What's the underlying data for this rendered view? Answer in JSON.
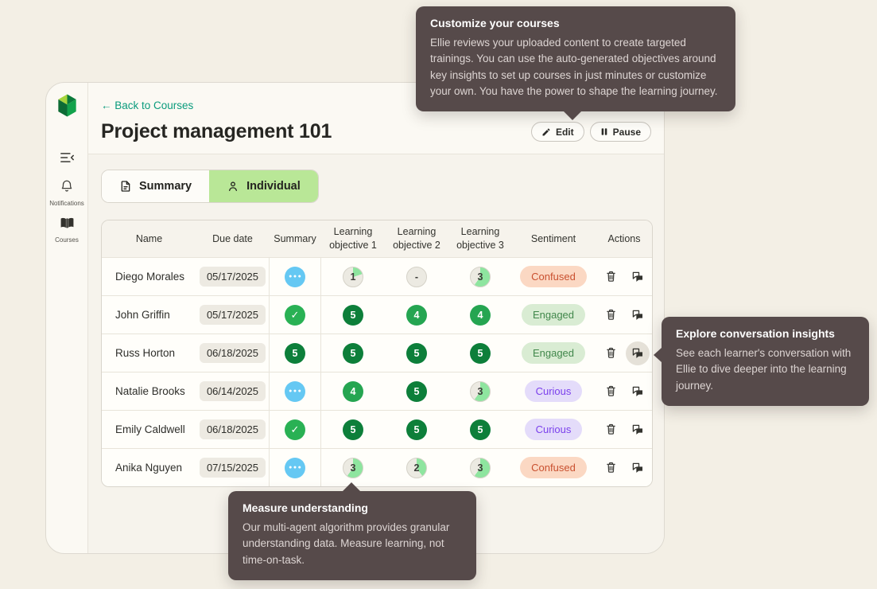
{
  "header": {
    "back_label": "← Back to Courses",
    "title": "Project management 101",
    "edit_label": "Edit",
    "pause_label": "Pause"
  },
  "sidebar": {
    "items": [
      {
        "label": "Notifications",
        "icon": "bell-icon"
      },
      {
        "label": "Courses",
        "icon": "book-icon"
      }
    ]
  },
  "tabs": [
    {
      "label": "Summary",
      "icon": "document-icon",
      "active": false
    },
    {
      "label": "Individual",
      "icon": "person-icon",
      "active": true
    }
  ],
  "table": {
    "columns": [
      "Name",
      "Due date",
      "Summary",
      "Learning objective 1",
      "Learning objective 2",
      "Learning objective 3",
      "Sentiment",
      "Actions"
    ],
    "rows": [
      {
        "name": "Diego Morales",
        "due_date": "05/17/2025",
        "summary": {
          "type": "ellipsis"
        },
        "objectives": [
          {
            "type": "pie",
            "value": "1",
            "fraction": 0.2
          },
          {
            "type": "pie",
            "value": "-",
            "fraction": 0
          },
          {
            "type": "pie",
            "value": "3",
            "fraction": 0.6
          }
        ],
        "sentiment": "Confused",
        "chat_highlighted": false
      },
      {
        "name": "John Griffin",
        "due_date": "05/17/2025",
        "summary": {
          "type": "check"
        },
        "objectives": [
          {
            "type": "solid",
            "value": "5"
          },
          {
            "type": "solid",
            "value": "4"
          },
          {
            "type": "solid",
            "value": "4"
          }
        ],
        "sentiment": "Engaged",
        "chat_highlighted": false
      },
      {
        "name": "Russ Horton",
        "due_date": "06/18/2025",
        "summary": {
          "type": "solid",
          "value": "5"
        },
        "objectives": [
          {
            "type": "solid",
            "value": "5"
          },
          {
            "type": "solid",
            "value": "5"
          },
          {
            "type": "solid",
            "value": "5"
          }
        ],
        "sentiment": "Engaged",
        "chat_highlighted": true
      },
      {
        "name": "Natalie Brooks",
        "due_date": "06/14/2025",
        "summary": {
          "type": "ellipsis"
        },
        "objectives": [
          {
            "type": "solid",
            "value": "4"
          },
          {
            "type": "solid",
            "value": "5"
          },
          {
            "type": "pie",
            "value": "3",
            "fraction": 0.6
          }
        ],
        "sentiment": "Curious",
        "chat_highlighted": false
      },
      {
        "name": "Emily Caldwell",
        "due_date": "06/18/2025",
        "summary": {
          "type": "check"
        },
        "objectives": [
          {
            "type": "solid",
            "value": "5"
          },
          {
            "type": "solid",
            "value": "5"
          },
          {
            "type": "solid",
            "value": "5"
          }
        ],
        "sentiment": "Curious",
        "chat_highlighted": false
      },
      {
        "name": "Anika Nguyen",
        "due_date": "07/15/2025",
        "summary": {
          "type": "ellipsis"
        },
        "objectives": [
          {
            "type": "pie",
            "value": "3",
            "fraction": 0.6
          },
          {
            "type": "pie",
            "value": "2",
            "fraction": 0.4
          },
          {
            "type": "pie",
            "value": "3",
            "fraction": 0.6
          }
        ],
        "sentiment": "Confused",
        "chat_highlighted": false
      }
    ]
  },
  "sentiments": {
    "Confused": {
      "bg": "#fbd8c3",
      "fg": "#c9502f"
    },
    "Engaged": {
      "bg": "#d9ecd3",
      "fg": "#41874b"
    },
    "Curious": {
      "bg": "#e4dcfa",
      "fg": "#7b40ec"
    }
  },
  "badge_colors": {
    "solid_5": "#0d7f3a",
    "solid_4": "#25a551",
    "pie_fill": "#8ee59f",
    "pie_base": "#eceae2",
    "pie_text": "#3c3c38",
    "check_bg": "#29b154",
    "ellipsis_bg": "#65c8f3"
  },
  "tooltips": [
    {
      "title": "Customize your courses",
      "body": "Ellie reviews your uploaded content to create targeted trainings. You can use the auto-generated objectives around key insights to set up courses in just minutes or customize your own. You have the power to shape the learning journey."
    },
    {
      "title": "Explore conversation insights",
      "body": "See each learner's conversation with Ellie to dive deeper into the learning journey."
    },
    {
      "title": "Measure understanding",
      "body": "Our multi-agent algorithm provides granular understanding data. Measure learning, not time-on-task."
    }
  ]
}
